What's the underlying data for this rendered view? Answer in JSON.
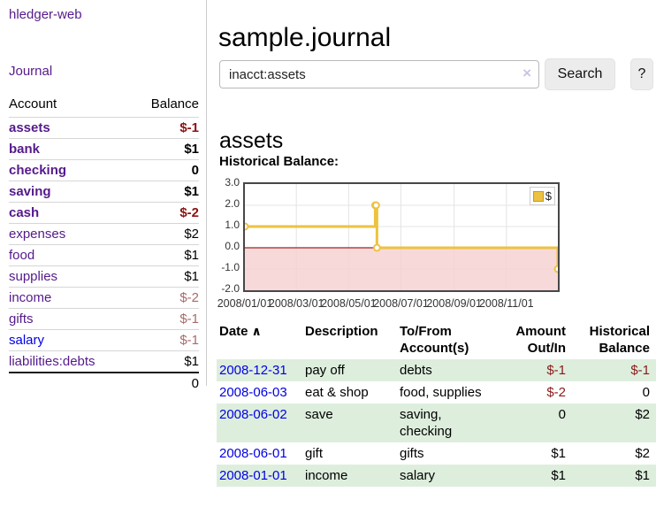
{
  "app": {
    "brand": "hledger-web"
  },
  "sidebar": {
    "nav": {
      "journal": "Journal"
    },
    "table": {
      "col_account": "Account",
      "col_balance": "Balance"
    },
    "accounts": [
      {
        "name": "assets",
        "balance": "$-1",
        "indent": 1,
        "bold": true,
        "balance_style": "neg-strong",
        "link_color": "purple"
      },
      {
        "name": "bank",
        "balance": "$1",
        "indent": 2,
        "bold": true,
        "balance_style": "plain",
        "link_color": "purple"
      },
      {
        "name": "checking",
        "balance": "0",
        "indent": 3,
        "bold": true,
        "balance_style": "plain",
        "link_color": "purple"
      },
      {
        "name": "saving",
        "balance": "$1",
        "indent": 3,
        "bold": true,
        "balance_style": "plain",
        "link_color": "purple"
      },
      {
        "name": "cash",
        "balance": "$-2",
        "indent": 2,
        "bold": true,
        "balance_style": "neg-strong",
        "link_color": "purple"
      },
      {
        "name": "expenses",
        "balance": "$2",
        "indent": 1,
        "bold": false,
        "balance_style": "plain",
        "link_color": "purple"
      },
      {
        "name": "food",
        "balance": "$1",
        "indent": 2,
        "bold": false,
        "balance_style": "plain",
        "link_color": "purple"
      },
      {
        "name": "supplies",
        "balance": "$1",
        "indent": 2,
        "bold": false,
        "balance_style": "plain",
        "link_color": "purple"
      },
      {
        "name": "income",
        "balance": "$-2",
        "indent": 1,
        "bold": false,
        "balance_style": "neg-muted",
        "link_color": "purple"
      },
      {
        "name": "gifts",
        "balance": "$-1",
        "indent": 2,
        "bold": false,
        "balance_style": "neg-muted",
        "link_color": "purple"
      },
      {
        "name": "salary",
        "balance": "$-1",
        "indent": 2,
        "bold": false,
        "balance_style": "neg-muted",
        "link_color": "blue"
      },
      {
        "name": "liabilities:debts",
        "balance": "$1",
        "indent": 1,
        "bold": false,
        "balance_style": "plain",
        "link_color": "purple"
      }
    ],
    "total_balance": "0"
  },
  "main": {
    "title": "sample.journal",
    "search": {
      "value": "inacct:assets",
      "clear_icon": "×",
      "search_button": "Search",
      "help_button": "?"
    },
    "account_heading": "assets"
  },
  "chart_data": {
    "type": "line",
    "title": "Historical Balance:",
    "series": [
      {
        "name": "$",
        "color": "#edc240",
        "step": true,
        "points": [
          [
            "2008-01-01",
            1
          ],
          [
            "2008-06-01",
            2
          ],
          [
            "2008-06-02",
            2
          ],
          [
            "2008-06-03",
            0
          ],
          [
            "2008-12-31",
            -1
          ]
        ]
      }
    ],
    "x_ticks": [
      "2008/01/01",
      "2008/03/01",
      "2008/05/01",
      "2008/07/01",
      "2008/09/01",
      "2008/11/01"
    ],
    "y_ticks": [
      3.0,
      2.0,
      1.0,
      0.0,
      -1.0,
      -2.0
    ],
    "xlim": [
      "2008-01-01",
      "2008-12-31"
    ],
    "ylim": [
      -2,
      3
    ],
    "grid": true,
    "legend": {
      "label": "$",
      "position": "top-right"
    },
    "negative_region_color": "#f6d0d0",
    "zero_line_color": "#9e2420"
  },
  "register": {
    "headers": {
      "date": "Date",
      "sort_icon": "∧",
      "description": "Description",
      "accounts": "To/From Account(s)",
      "amount": "Amount Out/In",
      "balance": "Historical Balance"
    },
    "rows": [
      {
        "date": "2008-12-31",
        "description": "pay off",
        "accounts": "debts",
        "amount": "$-1",
        "balance": "$-1",
        "amount_negative": true,
        "balance_negative": true
      },
      {
        "date": "2008-06-03",
        "description": "eat & shop",
        "accounts": "food, supplies",
        "amount": "$-2",
        "balance": "0",
        "amount_negative": true,
        "balance_negative": false
      },
      {
        "date": "2008-06-02",
        "description": "save",
        "accounts": "saving, checking",
        "amount": "0",
        "balance": "$2",
        "amount_negative": false,
        "balance_negative": false
      },
      {
        "date": "2008-06-01",
        "description": "gift",
        "accounts": "gifts",
        "amount": "$1",
        "balance": "$2",
        "amount_negative": false,
        "balance_negative": false
      },
      {
        "date": "2008-01-01",
        "description": "income",
        "accounts": "salary",
        "amount": "$1",
        "balance": "$1",
        "amount_negative": false,
        "balance_negative": false
      }
    ]
  }
}
